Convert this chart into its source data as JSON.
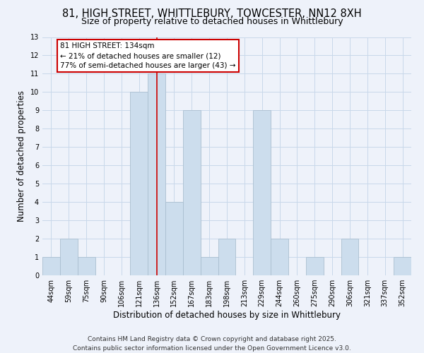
{
  "title": "81, HIGH STREET, WHITTLEBURY, TOWCESTER, NN12 8XH",
  "subtitle": "Size of property relative to detached houses in Whittlebury",
  "xlabel": "Distribution of detached houses by size in Whittlebury",
  "ylabel": "Number of detached properties",
  "bin_labels": [
    "44sqm",
    "59sqm",
    "75sqm",
    "90sqm",
    "106sqm",
    "121sqm",
    "136sqm",
    "152sqm",
    "167sqm",
    "183sqm",
    "198sqm",
    "213sqm",
    "229sqm",
    "244sqm",
    "260sqm",
    "275sqm",
    "290sqm",
    "306sqm",
    "321sqm",
    "337sqm",
    "352sqm"
  ],
  "bar_values": [
    1,
    2,
    1,
    0,
    0,
    10,
    11,
    4,
    9,
    1,
    2,
    0,
    9,
    2,
    0,
    1,
    0,
    2,
    0,
    0,
    1
  ],
  "bar_color": "#ccdded",
  "bar_edge_color": "#aabfd0",
  "vline_x_index": 6,
  "vline_color": "#cc0000",
  "annotation_title": "81 HIGH STREET: 134sqm",
  "annotation_line1": "← 21% of detached houses are smaller (12)",
  "annotation_line2": "77% of semi-detached houses are larger (43) →",
  "annotation_box_color": "#ffffff",
  "annotation_box_edge": "#cc0000",
  "ylim": [
    0,
    13
  ],
  "yticks": [
    0,
    1,
    2,
    3,
    4,
    5,
    6,
    7,
    8,
    9,
    10,
    11,
    12,
    13
  ],
  "grid_color": "#c8d8ea",
  "footnote1": "Contains HM Land Registry data © Crown copyright and database right 2025.",
  "footnote2": "Contains public sector information licensed under the Open Government Licence v3.0.",
  "bg_color": "#eef2fa",
  "title_fontsize": 10.5,
  "subtitle_fontsize": 9,
  "xlabel_fontsize": 8.5,
  "ylabel_fontsize": 8.5,
  "tick_fontsize": 7,
  "footnote_fontsize": 6.5
}
